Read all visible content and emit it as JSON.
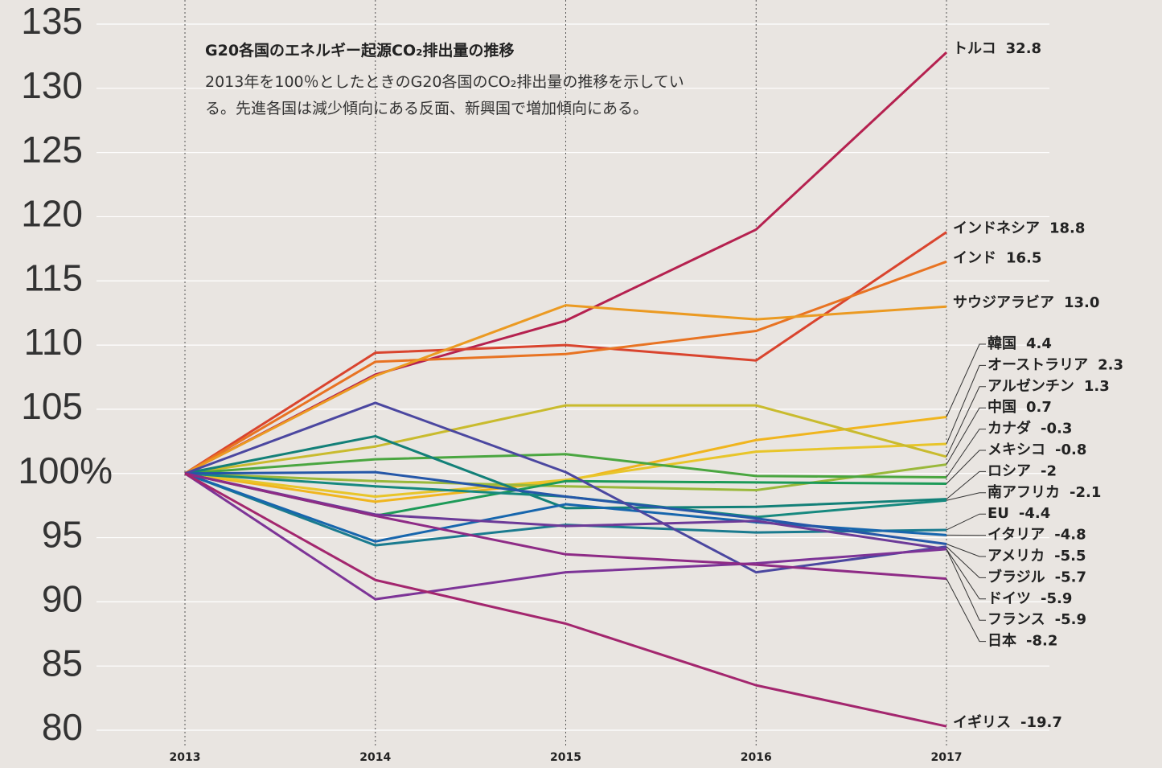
{
  "chart_data": {
    "type": "line",
    "title": "G20各国のエネルギー起源CO₂排出量の推移",
    "subtitle": "2013年を100％としたときのG20各国のCO₂排出量の推移を示している。先進各国は減少傾向にある反面、新興国で増加傾向にある。",
    "categories": [
      "2013",
      "2014",
      "2015",
      "2016",
      "2017"
    ],
    "ylim": [
      80,
      135
    ],
    "yticks": [
      80,
      85,
      90,
      95,
      {
        "value": 100,
        "label": "100%"
      },
      105,
      110,
      115,
      120,
      125,
      130,
      135
    ],
    "grid": true,
    "series": [
      {
        "name": "トルコ",
        "change": "32.8",
        "color": "#b5214f",
        "values": [
          100,
          107.7,
          111.9,
          119.0,
          132.8
        ]
      },
      {
        "name": "インドネシア",
        "change": "18.8",
        "color": "#d9442e",
        "values": [
          100,
          109.4,
          110.0,
          108.8,
          118.8
        ]
      },
      {
        "name": "インド",
        "change": "16.5",
        "color": "#e87322",
        "values": [
          100,
          108.7,
          109.3,
          111.1,
          116.5
        ]
      },
      {
        "name": "サウジアラビア",
        "change": "13.0",
        "color": "#eb9a22",
        "values": [
          100,
          107.6,
          113.1,
          112.0,
          113.0
        ]
      },
      {
        "name": "韓国",
        "change": "4.4",
        "color": "#f0b51e",
        "values": [
          100,
          97.8,
          99.4,
          102.6,
          104.4
        ]
      },
      {
        "name": "オーストラリア",
        "change": "2.3",
        "color": "#e8c52a",
        "values": [
          100,
          98.2,
          99.5,
          101.7,
          102.3
        ]
      },
      {
        "name": "アルゼンチン",
        "change": "1.3",
        "color": "#c9bb2e",
        "values": [
          100,
          102.1,
          105.3,
          105.3,
          101.3
        ]
      },
      {
        "name": "中国",
        "change": "0.7",
        "color": "#9ab83a",
        "values": [
          100,
          99.4,
          99.0,
          98.7,
          100.7
        ]
      },
      {
        "name": "カナダ",
        "change": "-0.3",
        "color": "#4aa640",
        "values": [
          100,
          101.1,
          101.5,
          99.8,
          99.7
        ]
      },
      {
        "name": "メキシコ",
        "change": "-0.8",
        "color": "#1d9a58",
        "values": [
          100,
          96.7,
          99.4,
          99.3,
          99.2
        ]
      },
      {
        "name": "ロシア",
        "change": "-2",
        "color": "#138078",
        "values": [
          100,
          102.9,
          97.3,
          97.4,
          98.0
        ]
      },
      {
        "name": "南アフリカ",
        "change": "-2.1",
        "color": "#17897f",
        "values": [
          100,
          99.0,
          98.2,
          96.6,
          97.9
        ]
      },
      {
        "name": "EU",
        "change": "-4.4",
        "color": "#1a7b8f",
        "values": [
          100,
          94.4,
          96.0,
          95.4,
          95.6
        ]
      },
      {
        "name": "イタリア",
        "change": "-4.8",
        "color": "#1766ad",
        "values": [
          100,
          94.7,
          97.6,
          96.2,
          95.2
        ]
      },
      {
        "name": "アメリカ",
        "change": "-5.5",
        "color": "#2557a8",
        "values": [
          100,
          100.1,
          98.2,
          96.5,
          94.5
        ]
      },
      {
        "name": "ブラジル",
        "change": "-5.7",
        "color": "#4b47a0",
        "values": [
          100,
          105.5,
          100.1,
          92.3,
          94.3
        ]
      },
      {
        "name": "ドイツ",
        "change": "-5.9",
        "color": "#6c3a98",
        "values": [
          100,
          96.8,
          95.9,
          96.3,
          94.1
        ]
      },
      {
        "name": "フランス",
        "change": "-5.9",
        "color": "#7d3497",
        "values": [
          100,
          90.2,
          92.3,
          93.0,
          94.1
        ]
      },
      {
        "name": "日本",
        "change": "-8.2",
        "color": "#8e2b86",
        "values": [
          100,
          96.7,
          93.7,
          92.9,
          91.8
        ]
      },
      {
        "name": "イギリス",
        "change": "-19.7",
        "color": "#a3266e",
        "values": [
          100,
          91.7,
          88.3,
          83.5,
          80.3
        ]
      }
    ]
  }
}
